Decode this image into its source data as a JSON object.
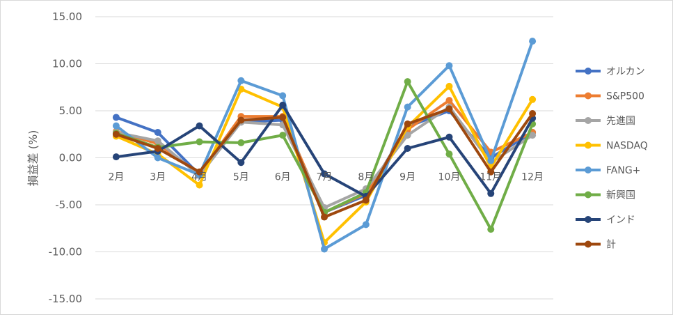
{
  "chart_data": {
    "type": "line",
    "ylabel": "損益差 (%)",
    "xlabel": "",
    "title": "",
    "ylim": [
      -15,
      15
    ],
    "yticks": [
      15,
      10,
      5,
      0,
      -5,
      -10,
      -15
    ],
    "ytick_labels": [
      "15.00",
      "10.00",
      "5.00",
      "0.00",
      "-5.00",
      "-10.00",
      "-15.00"
    ],
    "categories": [
      "2月",
      "3月",
      "4月",
      "5月",
      "6月",
      "7月",
      "8月",
      "9月",
      "10月",
      "11月",
      "12月"
    ],
    "grid": true,
    "legend_position": "right",
    "series": [
      {
        "name": "オルカン",
        "color": "#4472C4",
        "values": [
          4.3,
          2.7,
          -1.8,
          3.8,
          4.0,
          -5.8,
          -4.0,
          3.3,
          5.0,
          0.0,
          2.7
        ]
      },
      {
        "name": "S&P500",
        "color": "#ED7D31",
        "values": [
          2.8,
          1.5,
          -1.7,
          4.4,
          4.4,
          -5.8,
          -3.8,
          3.0,
          6.1,
          0.6,
          2.7
        ]
      },
      {
        "name": "先進国",
        "color": "#A5A5A5",
        "values": [
          2.7,
          1.8,
          -1.9,
          3.8,
          3.5,
          -5.3,
          -3.3,
          2.4,
          5.4,
          -0.5,
          2.4
        ]
      },
      {
        "name": "NASDAQ",
        "color": "#FFC000",
        "values": [
          2.3,
          0.4,
          -2.9,
          7.3,
          5.4,
          -9.0,
          -4.7,
          3.3,
          7.6,
          -1.0,
          6.2
        ]
      },
      {
        "name": "FANG+",
        "color": "#5B9BD5",
        "values": [
          3.4,
          0.0,
          -1.8,
          8.2,
          6.6,
          -9.7,
          -7.1,
          5.4,
          9.8,
          -0.3,
          12.4
        ]
      },
      {
        "name": "新興国",
        "color": "#70AD47",
        "values": [
          2.6,
          1.1,
          1.7,
          1.6,
          2.4,
          -5.8,
          -3.7,
          8.1,
          0.4,
          -7.6,
          3.6
        ]
      },
      {
        "name": "インド",
        "color": "#264478",
        "values": [
          0.1,
          0.7,
          3.4,
          -0.5,
          5.6,
          -1.7,
          -4.1,
          1.0,
          2.2,
          -3.8,
          4.2
        ]
      },
      {
        "name": "計",
        "color": "#9E480E",
        "values": [
          2.5,
          1.0,
          -1.5,
          4.0,
          4.3,
          -6.3,
          -4.5,
          3.6,
          5.2,
          -1.5,
          4.7
        ]
      }
    ]
  }
}
